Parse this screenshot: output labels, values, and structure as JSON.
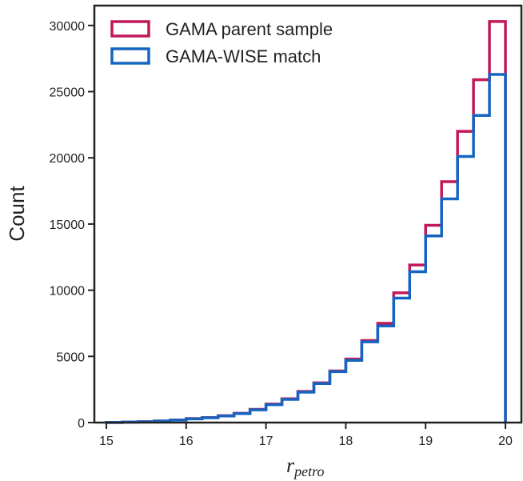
{
  "chart_data": {
    "type": "histogram",
    "title": "",
    "xlabel": "r",
    "xlabel_subscript": "petro",
    "ylabel": "Count",
    "xlim": [
      14.85,
      20.2
    ],
    "ylim": [
      0,
      31500
    ],
    "xticks": [
      "15",
      "16",
      "17",
      "18",
      "19",
      "20"
    ],
    "yticks": [
      "0",
      "5000",
      "10000",
      "15000",
      "20000",
      "25000",
      "30000"
    ],
    "grid": false,
    "legend_position": "top-left",
    "bin_edges": [
      15.0,
      15.2,
      15.4,
      15.6,
      15.8,
      16.0,
      16.2,
      16.4,
      16.6,
      16.8,
      17.0,
      17.2,
      17.4,
      17.6,
      17.8,
      18.0,
      18.2,
      18.4,
      18.6,
      18.8,
      19.0,
      19.2,
      19.4,
      19.6,
      19.8
    ],
    "series": [
      {
        "name": "GAMA parent sample",
        "color": "#c2185b",
        "values": [
          10,
          40,
          70,
          120,
          200,
          300,
          380,
          520,
          700,
          1000,
          1400,
          1800,
          2350,
          3000,
          3900,
          4800,
          6200,
          7500,
          9800,
          11900,
          14900,
          18200,
          22000,
          25900,
          30300
        ]
      },
      {
        "name": "GAMA-WISE match",
        "color": "#1565c0",
        "values": [
          10,
          35,
          60,
          110,
          190,
          280,
          360,
          500,
          680,
          960,
          1350,
          1750,
          2300,
          2950,
          3850,
          4700,
          6100,
          7300,
          9400,
          11400,
          14100,
          16900,
          20100,
          23200,
          26300
        ]
      }
    ]
  }
}
